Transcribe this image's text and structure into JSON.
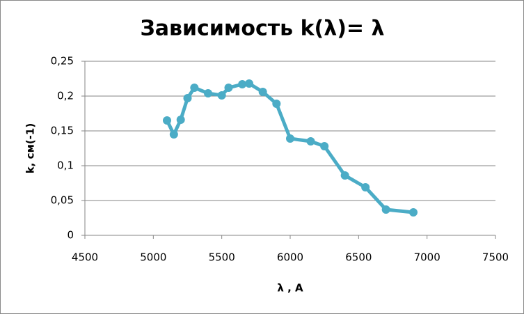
{
  "chart_data": {
    "type": "line",
    "title": "Зависимость k(λ)= λ",
    "x_label": "λ , А",
    "y_label": "k, см(-1)",
    "x": [
      5100,
      5150,
      5200,
      5250,
      5300,
      5400,
      5500,
      5550,
      5650,
      5700,
      5800,
      5900,
      6000,
      6150,
      6250,
      6400,
      6550,
      6700,
      6900
    ],
    "series": [
      {
        "name": "k",
        "color": "#4bacc6",
        "values": [
          0.165,
          0.145,
          0.166,
          0.197,
          0.212,
          0.204,
          0.201,
          0.212,
          0.217,
          0.218,
          0.206,
          0.189,
          0.139,
          0.135,
          0.128,
          0.086,
          0.069,
          0.037,
          0.033
        ]
      }
    ],
    "xlim": [
      4500,
      7500
    ],
    "xticks": [
      4500,
      5000,
      5500,
      6000,
      6500,
      7000,
      7500
    ],
    "ylim": [
      0,
      0.25
    ],
    "yticks": [
      0,
      {
        "value": 0.05,
        "label": "0,05"
      },
      {
        "value": 0.1,
        "label": "0,1"
      },
      {
        "value": 0.15,
        "label": "0,15"
      },
      {
        "value": 0.2,
        "label": "0,2"
      },
      {
        "value": 0.25,
        "label": "0,25"
      }
    ],
    "grid": true
  }
}
